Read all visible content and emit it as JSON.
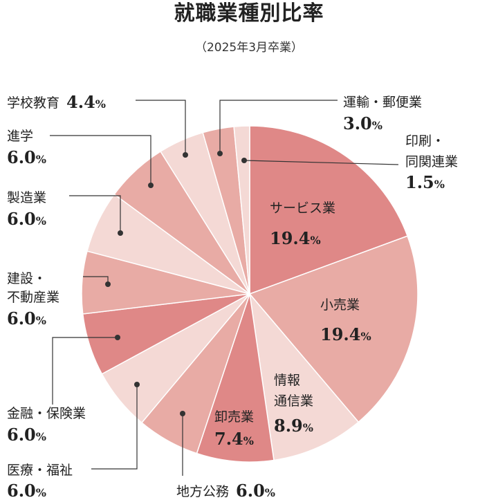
{
  "chart_data": {
    "type": "pie",
    "title": "就職業種別比率",
    "subtitle": "（2025年3月卒業）",
    "unit": "%",
    "slices": [
      {
        "label": [
          "サービス業"
        ],
        "value": 19.4,
        "value_text": "19.4",
        "color": "#df8887"
      },
      {
        "label": [
          "小売業"
        ],
        "value": 19.4,
        "value_text": "19.4",
        "color": "#e8aba5"
      },
      {
        "label": [
          "情報",
          "通信業"
        ],
        "value": 8.9,
        "value_text": "8.9",
        "color": "#f4d9d5"
      },
      {
        "label": [
          "卸売業"
        ],
        "value": 7.4,
        "value_text": "7.4",
        "color": "#df8887"
      },
      {
        "label": [
          "地方公務"
        ],
        "value": 6.0,
        "value_text": "6.0",
        "color": "#e8aba5"
      },
      {
        "label": [
          "医療・福祉"
        ],
        "value": 6.0,
        "value_text": "6.0",
        "color": "#f4d9d5"
      },
      {
        "label": [
          "金融・保険業"
        ],
        "value": 6.0,
        "value_text": "6.0",
        "color": "#df8887"
      },
      {
        "label": [
          "建設・",
          "不動産業"
        ],
        "value": 6.0,
        "value_text": "6.0",
        "color": "#e8aba5"
      },
      {
        "label": [
          "製造業"
        ],
        "value": 6.0,
        "value_text": "6.0",
        "color": "#f4d9d5"
      },
      {
        "label": [
          "進学"
        ],
        "value": 6.0,
        "value_text": "6.0",
        "color": "#e8aba5"
      },
      {
        "label": [
          "学校教育"
        ],
        "value": 4.4,
        "value_text": "4.4",
        "color": "#f4d9d5"
      },
      {
        "label": [
          "運輸・郵便業"
        ],
        "value": 3.0,
        "value_text": "3.0",
        "color": "#e8aba5"
      },
      {
        "label": [
          "印刷・",
          "同関連業"
        ],
        "value": 1.5,
        "value_text": "1.5",
        "color": "#f4d9d5"
      }
    ]
  }
}
